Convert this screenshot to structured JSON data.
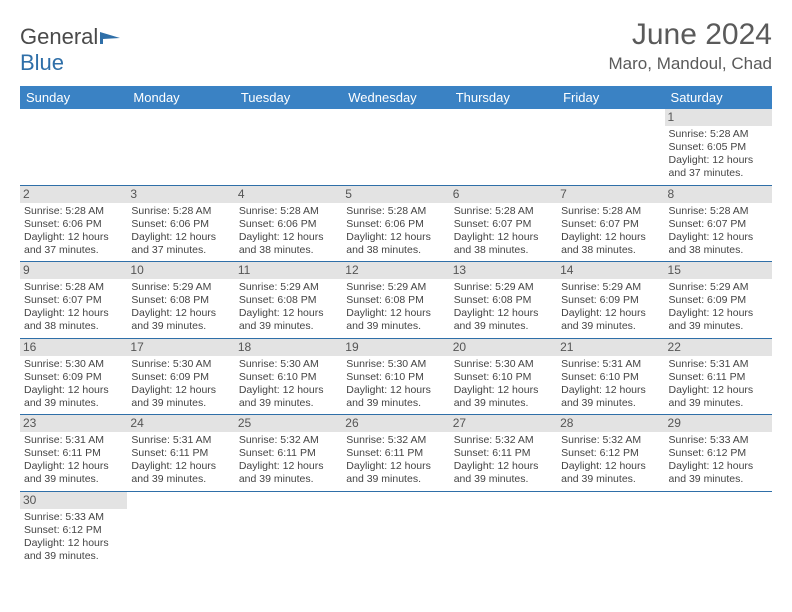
{
  "logo": {
    "text1": "General",
    "text2": "Blue"
  },
  "title": "June 2024",
  "location": "Maro, Mandoul, Chad",
  "colors": {
    "header_bg": "#3a82c4",
    "header_text": "#ffffff",
    "border": "#2f6fa8",
    "daynum_bg": "#e3e3e3",
    "text": "#444444"
  },
  "weekdays": [
    "Sunday",
    "Monday",
    "Tuesday",
    "Wednesday",
    "Thursday",
    "Friday",
    "Saturday"
  ],
  "first_weekday_index": 6,
  "days": [
    {
      "n": 1,
      "sr": "5:28 AM",
      "ss": "6:05 PM",
      "dl": "12 hours and 37 minutes."
    },
    {
      "n": 2,
      "sr": "5:28 AM",
      "ss": "6:06 PM",
      "dl": "12 hours and 37 minutes."
    },
    {
      "n": 3,
      "sr": "5:28 AM",
      "ss": "6:06 PM",
      "dl": "12 hours and 37 minutes."
    },
    {
      "n": 4,
      "sr": "5:28 AM",
      "ss": "6:06 PM",
      "dl": "12 hours and 38 minutes."
    },
    {
      "n": 5,
      "sr": "5:28 AM",
      "ss": "6:06 PM",
      "dl": "12 hours and 38 minutes."
    },
    {
      "n": 6,
      "sr": "5:28 AM",
      "ss": "6:07 PM",
      "dl": "12 hours and 38 minutes."
    },
    {
      "n": 7,
      "sr": "5:28 AM",
      "ss": "6:07 PM",
      "dl": "12 hours and 38 minutes."
    },
    {
      "n": 8,
      "sr": "5:28 AM",
      "ss": "6:07 PM",
      "dl": "12 hours and 38 minutes."
    },
    {
      "n": 9,
      "sr": "5:28 AM",
      "ss": "6:07 PM",
      "dl": "12 hours and 38 minutes."
    },
    {
      "n": 10,
      "sr": "5:29 AM",
      "ss": "6:08 PM",
      "dl": "12 hours and 39 minutes."
    },
    {
      "n": 11,
      "sr": "5:29 AM",
      "ss": "6:08 PM",
      "dl": "12 hours and 39 minutes."
    },
    {
      "n": 12,
      "sr": "5:29 AM",
      "ss": "6:08 PM",
      "dl": "12 hours and 39 minutes."
    },
    {
      "n": 13,
      "sr": "5:29 AM",
      "ss": "6:08 PM",
      "dl": "12 hours and 39 minutes."
    },
    {
      "n": 14,
      "sr": "5:29 AM",
      "ss": "6:09 PM",
      "dl": "12 hours and 39 minutes."
    },
    {
      "n": 15,
      "sr": "5:29 AM",
      "ss": "6:09 PM",
      "dl": "12 hours and 39 minutes."
    },
    {
      "n": 16,
      "sr": "5:30 AM",
      "ss": "6:09 PM",
      "dl": "12 hours and 39 minutes."
    },
    {
      "n": 17,
      "sr": "5:30 AM",
      "ss": "6:09 PM",
      "dl": "12 hours and 39 minutes."
    },
    {
      "n": 18,
      "sr": "5:30 AM",
      "ss": "6:10 PM",
      "dl": "12 hours and 39 minutes."
    },
    {
      "n": 19,
      "sr": "5:30 AM",
      "ss": "6:10 PM",
      "dl": "12 hours and 39 minutes."
    },
    {
      "n": 20,
      "sr": "5:30 AM",
      "ss": "6:10 PM",
      "dl": "12 hours and 39 minutes."
    },
    {
      "n": 21,
      "sr": "5:31 AM",
      "ss": "6:10 PM",
      "dl": "12 hours and 39 minutes."
    },
    {
      "n": 22,
      "sr": "5:31 AM",
      "ss": "6:11 PM",
      "dl": "12 hours and 39 minutes."
    },
    {
      "n": 23,
      "sr": "5:31 AM",
      "ss": "6:11 PM",
      "dl": "12 hours and 39 minutes."
    },
    {
      "n": 24,
      "sr": "5:31 AM",
      "ss": "6:11 PM",
      "dl": "12 hours and 39 minutes."
    },
    {
      "n": 25,
      "sr": "5:32 AM",
      "ss": "6:11 PM",
      "dl": "12 hours and 39 minutes."
    },
    {
      "n": 26,
      "sr": "5:32 AM",
      "ss": "6:11 PM",
      "dl": "12 hours and 39 minutes."
    },
    {
      "n": 27,
      "sr": "5:32 AM",
      "ss": "6:11 PM",
      "dl": "12 hours and 39 minutes."
    },
    {
      "n": 28,
      "sr": "5:32 AM",
      "ss": "6:12 PM",
      "dl": "12 hours and 39 minutes."
    },
    {
      "n": 29,
      "sr": "5:33 AM",
      "ss": "6:12 PM",
      "dl": "12 hours and 39 minutes."
    },
    {
      "n": 30,
      "sr": "5:33 AM",
      "ss": "6:12 PM",
      "dl": "12 hours and 39 minutes."
    }
  ],
  "labels": {
    "sunrise": "Sunrise: ",
    "sunset": "Sunset: ",
    "daylight": "Daylight: "
  }
}
